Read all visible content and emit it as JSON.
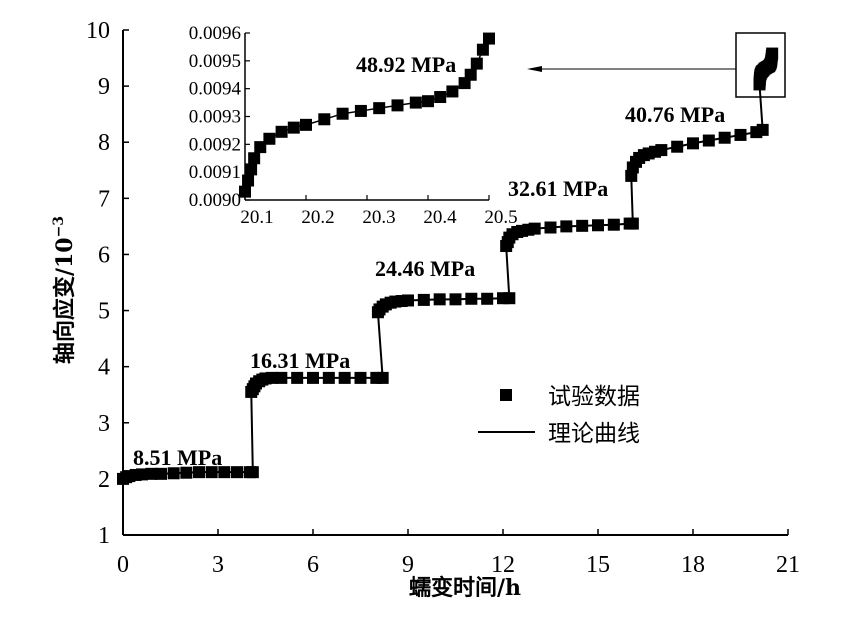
{
  "chart_data": {
    "type": "scatter",
    "xlabel": "蠕变时间/h",
    "ylabel": "轴向应变/10",
    "ylabel_exponent": "−3",
    "xlim": [
      0,
      21
    ],
    "ylim": [
      1,
      10
    ],
    "xticks": [
      "0",
      "3",
      "6",
      "9",
      "12",
      "15",
      "18",
      "21"
    ],
    "yticks": [
      "1",
      "2",
      "3",
      "4",
      "5",
      "6",
      "7",
      "8",
      "9",
      "10"
    ],
    "legend": {
      "position": "center-right",
      "markers": "试验数据",
      "line": "理论曲线"
    },
    "stages": [
      {
        "label": "8.51 MPa",
        "x": [
          0,
          0.1,
          0.2,
          0.4,
          0.6,
          0.9,
          1.2,
          1.6,
          2,
          2.4,
          2.8,
          3.2,
          3.6,
          4.0,
          4.1
        ],
        "y": [
          2.0,
          2.03,
          2.05,
          2.07,
          2.08,
          2.09,
          2.09,
          2.1,
          2.11,
          2.12,
          2.12,
          2.12,
          2.12,
          2.12,
          2.12
        ]
      },
      {
        "label": "16.31 MPa",
        "x": [
          4.05,
          4.1,
          4.15,
          4.2,
          4.3,
          4.4,
          4.5,
          4.7,
          5,
          5.5,
          6,
          6.5,
          7,
          7.5,
          8,
          8.2
        ],
        "y": [
          3.55,
          3.6,
          3.65,
          3.7,
          3.74,
          3.77,
          3.79,
          3.8,
          3.8,
          3.8,
          3.8,
          3.8,
          3.8,
          3.8,
          3.8,
          3.8
        ]
      },
      {
        "label": "24.46 MPa",
        "x": [
          8.05,
          8.1,
          8.2,
          8.3,
          8.45,
          8.6,
          8.8,
          9,
          9.5,
          10,
          10.5,
          11,
          11.5,
          12,
          12.2
        ],
        "y": [
          4.97,
          5.02,
          5.07,
          5.11,
          5.14,
          5.16,
          5.17,
          5.18,
          5.19,
          5.2,
          5.2,
          5.21,
          5.21,
          5.22,
          5.22
        ]
      },
      {
        "label": "32.61 MPa",
        "x": [
          12.1,
          12.15,
          12.2,
          12.3,
          12.45,
          12.6,
          12.8,
          13,
          13.5,
          14,
          14.5,
          15,
          15.5,
          16,
          16.1
        ],
        "y": [
          6.15,
          6.22,
          6.3,
          6.36,
          6.4,
          6.42,
          6.44,
          6.46,
          6.48,
          6.5,
          6.51,
          6.52,
          6.53,
          6.55,
          6.55
        ]
      },
      {
        "label": "40.76 MPa",
        "x": [
          16.05,
          16.1,
          16.2,
          16.3,
          16.45,
          16.6,
          16.8,
          17,
          17.5,
          18,
          18.5,
          19,
          19.5,
          20,
          20.2
        ],
        "y": [
          7.4,
          7.55,
          7.65,
          7.72,
          7.77,
          7.8,
          7.83,
          7.86,
          7.92,
          7.98,
          8.03,
          8.08,
          8.13,
          8.18,
          8.22
        ]
      },
      {
        "label": "48.92 MPa",
        "x": [
          20.1,
          20.105,
          20.11,
          20.115,
          20.125,
          20.14,
          20.16,
          20.18,
          20.2,
          20.23,
          20.26,
          20.29,
          20.32,
          20.35,
          20.38,
          20.4,
          20.42,
          20.44,
          20.46,
          20.47,
          20.48,
          20.49,
          20.5
        ],
        "y": [
          9.03,
          9.07,
          9.11,
          9.15,
          9.19,
          9.22,
          9.245,
          9.26,
          9.27,
          9.29,
          9.31,
          9.32,
          9.33,
          9.34,
          9.35,
          9.355,
          9.37,
          9.39,
          9.42,
          9.45,
          9.49,
          9.54,
          9.58
        ]
      }
    ],
    "inset": {
      "xlim": [
        20.1,
        20.5
      ],
      "ylim": [
        0.009,
        0.0096
      ],
      "xticks": [
        "20.1",
        "20.2",
        "20.3",
        "20.4",
        "20.5"
      ],
      "yticks": [
        "0.0090",
        "0.0091",
        "0.0092",
        "0.0093",
        "0.0094",
        "0.0095",
        "0.0096"
      ],
      "y_scale_to_strain": 0.001
    }
  }
}
